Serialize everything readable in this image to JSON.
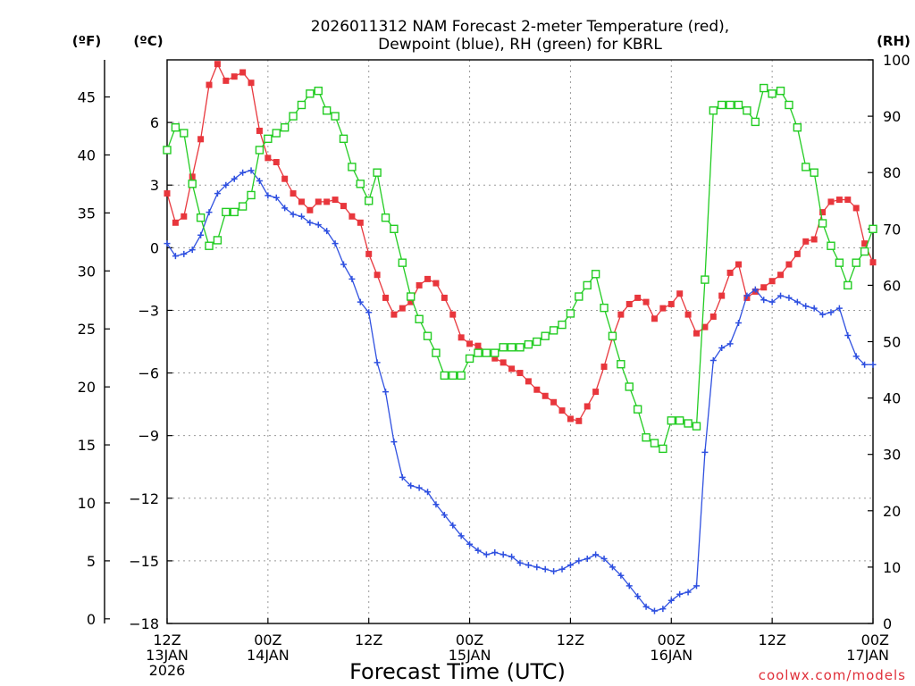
{
  "chart_data": {
    "type": "line",
    "title_lines": [
      "2026011312 NAM Forecast 2-meter Temperature (red),",
      "Dewpoint (blue), RH (green) for KBRL"
    ],
    "xlabel": "Forecast Time (UTC)",
    "credit": "coolwx.com/models",
    "units": {
      "fahrenheit": "(ºF)",
      "celsius": "(ºC)",
      "rh": "(RH)"
    },
    "x_range_hours": [
      0,
      84
    ],
    "x_ticks": [
      {
        "hour": 0,
        "lines": [
          "12Z",
          "13JAN",
          "2026"
        ]
      },
      {
        "hour": 12,
        "lines": [
          "00Z",
          "14JAN"
        ]
      },
      {
        "hour": 24,
        "lines": [
          "12Z"
        ]
      },
      {
        "hour": 36,
        "lines": [
          "00Z",
          "15JAN"
        ]
      },
      {
        "hour": 48,
        "lines": [
          "12Z"
        ]
      },
      {
        "hour": 60,
        "lines": [
          "00Z",
          "16JAN"
        ]
      },
      {
        "hour": 72,
        "lines": [
          "12Z"
        ]
      },
      {
        "hour": 84,
        "lines": [
          "00Z",
          "17JAN"
        ]
      }
    ],
    "y_celsius": {
      "range": [
        -18,
        9
      ],
      "ticks": [
        "6",
        "3",
        "0",
        "−3",
        "−6",
        "−9",
        "−12",
        "−15",
        "−18"
      ],
      "tick_values": [
        6,
        3,
        0,
        -3,
        -6,
        -9,
        -12,
        -15,
        -18
      ]
    },
    "y_fahrenheit": {
      "ticks": [
        "45",
        "40",
        "35",
        "30",
        "25",
        "20",
        "15",
        "10",
        "5",
        "0"
      ],
      "tick_values": [
        45,
        40,
        35,
        30,
        25,
        20,
        15,
        10,
        5,
        0
      ]
    },
    "y_rh": {
      "range": [
        0,
        100
      ],
      "ticks": [
        "100",
        "90",
        "80",
        "70",
        "60",
        "50",
        "40",
        "30",
        "20",
        "10",
        "0"
      ],
      "tick_values": [
        100,
        90,
        80,
        70,
        60,
        50,
        40,
        30,
        20,
        10,
        0
      ]
    },
    "grid": true,
    "series": [
      {
        "name": "2-meter Temperature",
        "color": "#e8363c",
        "marker": "filled-square",
        "axis": "celsius",
        "values": [
          2.6,
          1.2,
          1.5,
          3.4,
          5.2,
          7.8,
          8.8,
          8.0,
          8.2,
          8.4,
          7.9,
          5.6,
          4.3,
          4.1,
          3.3,
          2.6,
          2.2,
          1.8,
          2.2,
          2.2,
          2.3,
          2.0,
          1.5,
          1.2,
          -0.3,
          -1.3,
          -2.4,
          -3.2,
          -2.9,
          -2.6,
          -1.8,
          -1.5,
          -1.7,
          -2.4,
          -3.2,
          -4.3,
          -4.6,
          -4.7,
          -5.0,
          -5.3,
          -5.5,
          -5.8,
          -6.0,
          -6.4,
          -6.8,
          -7.1,
          -7.4,
          -7.8,
          -8.2,
          -8.3,
          -7.6,
          -6.9,
          -5.7,
          -4.3,
          -3.2,
          -2.7,
          -2.4,
          -2.6,
          -3.4,
          -2.9,
          -2.7,
          -2.2,
          -3.2,
          -4.1,
          -3.8,
          -3.3,
          -2.3,
          -1.2,
          -0.8,
          -2.4,
          -2.1,
          -1.9,
          -1.6,
          -1.3,
          -0.8,
          -0.3,
          0.3,
          0.4,
          1.7,
          2.2,
          2.3,
          2.3,
          1.9,
          0.2,
          -0.7
        ]
      },
      {
        "name": "Dewpoint",
        "color": "#2f50e0",
        "marker": "plus",
        "axis": "celsius",
        "values": [
          0.2,
          -0.4,
          -0.3,
          -0.1,
          0.6,
          1.7,
          2.6,
          3.0,
          3.3,
          3.6,
          3.7,
          3.2,
          2.5,
          2.4,
          1.9,
          1.6,
          1.5,
          1.2,
          1.1,
          0.8,
          0.2,
          -0.8,
          -1.5,
          -2.6,
          -3.1,
          -5.5,
          -6.9,
          -9.3,
          -11.0,
          -11.4,
          -11.5,
          -11.7,
          -12.3,
          -12.8,
          -13.3,
          -13.8,
          -14.2,
          -14.5,
          -14.7,
          -14.6,
          -14.7,
          -14.8,
          -15.1,
          -15.2,
          -15.3,
          -15.4,
          -15.5,
          -15.4,
          -15.2,
          -15.0,
          -14.9,
          -14.7,
          -14.9,
          -15.3,
          -15.7,
          -16.2,
          -16.7,
          -17.2,
          -17.4,
          -17.3,
          -16.9,
          -16.6,
          -16.5,
          -16.2,
          -9.8,
          -5.4,
          -4.8,
          -4.6,
          -3.6,
          -2.3,
          -2.0,
          -2.5,
          -2.6,
          -2.3,
          -2.4,
          -2.6,
          -2.8,
          -2.9,
          -3.2,
          -3.1,
          -2.9,
          -4.2,
          -5.2,
          -5.6,
          -5.6
        ]
      },
      {
        "name": "RH",
        "color": "#22cc22",
        "marker": "open-square",
        "axis": "rh",
        "values": [
          84,
          88,
          87,
          78,
          72,
          67,
          68,
          73,
          73,
          74,
          76,
          84,
          86,
          87,
          88,
          90,
          92,
          94,
          94.5,
          91,
          90,
          86,
          81,
          78,
          75,
          80,
          72,
          70,
          64,
          58,
          54,
          51,
          48,
          44,
          44,
          44,
          47,
          48,
          48,
          48,
          49,
          49,
          49,
          49.5,
          50,
          51,
          52,
          53,
          55,
          58,
          60,
          62,
          56,
          51,
          46,
          42,
          38,
          33,
          32,
          31,
          36,
          36,
          35.5,
          35,
          61,
          91,
          92,
          92,
          92,
          91,
          89,
          95,
          94,
          94.5,
          92,
          88,
          81,
          80,
          71,
          67,
          64,
          60,
          64,
          66,
          70
        ]
      }
    ]
  }
}
